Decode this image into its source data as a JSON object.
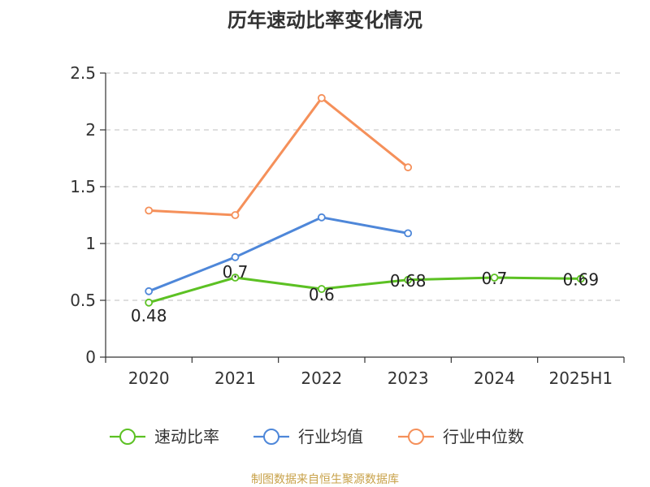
{
  "chart_data": {
    "type": "line",
    "title": "历年速动比率变化情况",
    "xlabel": "",
    "ylabel": "",
    "categories": [
      "2020",
      "2021",
      "2022",
      "2023",
      "2024",
      "2025H1"
    ],
    "ylim": [
      0,
      2.5
    ],
    "yticks": [
      "0",
      "0.5",
      "1",
      "1.5",
      "2",
      "2.5"
    ],
    "grid": true,
    "legend_position": "bottom",
    "series": [
      {
        "name": "速动比率",
        "color": "#5cc123",
        "values": [
          0.48,
          0.7,
          0.6,
          0.68,
          0.7,
          0.69
        ],
        "labels": [
          "0.48",
          "0.7",
          "0.6",
          "0.68",
          "0.7",
          "0.69"
        ]
      },
      {
        "name": "行业均值",
        "color": "#4e87d9",
        "values": [
          0.58,
          0.88,
          1.23,
          1.09,
          null,
          null
        ]
      },
      {
        "name": "行业中位数",
        "color": "#f5905a",
        "values": [
          1.29,
          1.25,
          2.28,
          1.67,
          null,
          null
        ]
      }
    ]
  },
  "source_text": "制图数据来自恒生聚源数据库"
}
